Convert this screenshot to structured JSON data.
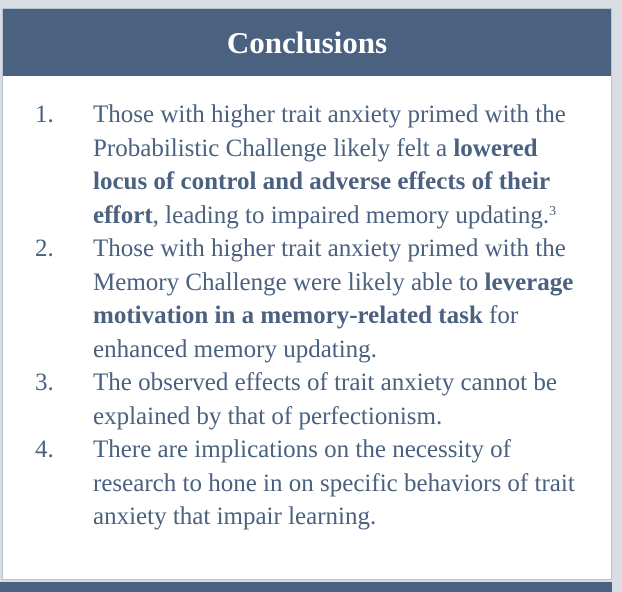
{
  "header": {
    "title": "Conclusions"
  },
  "items": [
    {
      "number": "1.",
      "pre": "Those with higher trait anxiety primed with the Probabilistic Challenge likely felt a ",
      "bold": "lowered locus of control and adverse effects of their effort",
      "post": ", leading to impaired memory updating.",
      "sup": "3"
    },
    {
      "number": "2.",
      "pre": "Those with higher trait anxiety primed with the Memory Challenge were likely able to ",
      "bold": "leverage motivation in a memory-related task",
      "post": " for enhanced memory updating.",
      "sup": ""
    },
    {
      "number": "3.",
      "pre": "The observed effects of trait anxiety cannot be explained by that of perfectionism.",
      "bold": "",
      "post": "",
      "sup": ""
    },
    {
      "number": "4.",
      "pre": "There are implications on the necessity of research to hone in on specific behaviors of trait anxiety that impair learning.",
      "bold": "",
      "post": "",
      "sup": ""
    }
  ],
  "colors": {
    "accent": "#4a6180",
    "background": "#ffffff"
  }
}
